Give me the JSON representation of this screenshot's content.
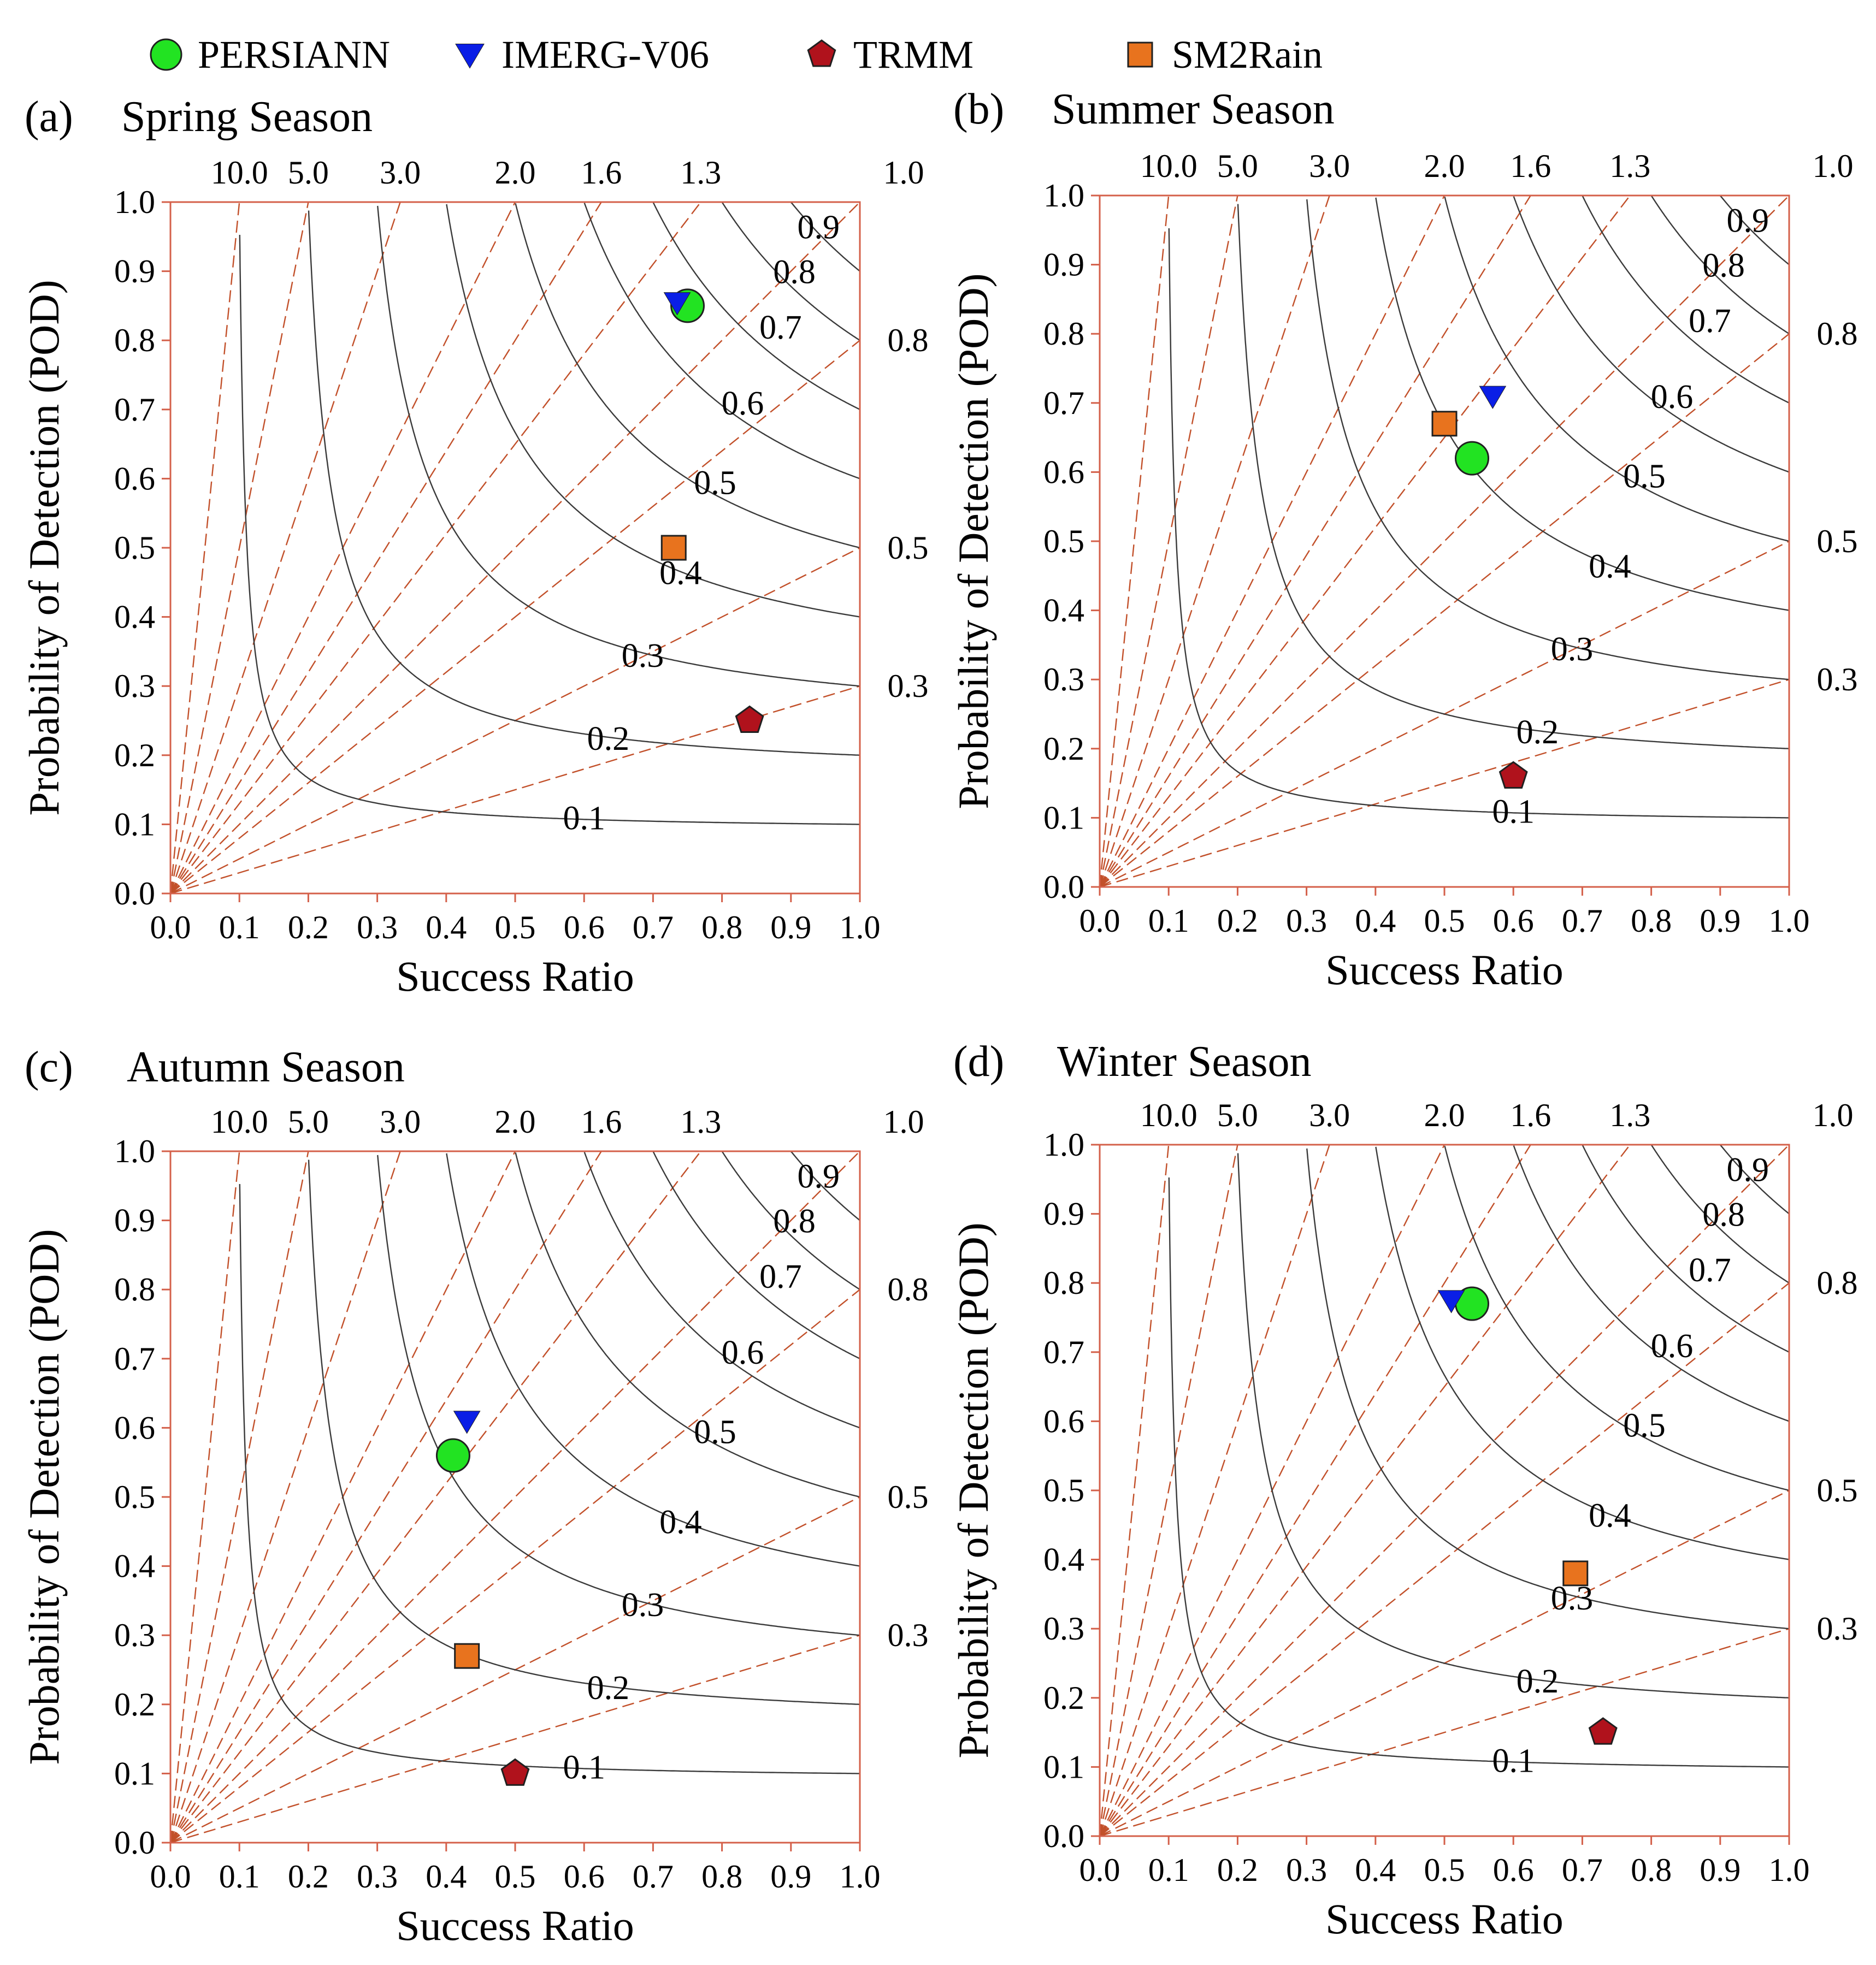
{
  "legend": [
    {
      "name": "PERSIANN",
      "marker": "circle",
      "color": "#22e322"
    },
    {
      "name": "IMERG-V06",
      "marker": "triangle-down",
      "color": "#0a1ee6"
    },
    {
      "name": "TRMM",
      "marker": "pentagon",
      "color": "#b0121c"
    },
    {
      "name": "SM2Rain",
      "marker": "square",
      "color": "#e8731e"
    }
  ],
  "colors": {
    "csi_line": "#3a3a3a",
    "bias_line": "#c2502a",
    "frame": "#d4604a"
  },
  "chart_data": [
    {
      "type": "scatter",
      "letter": "(a)",
      "title": "Spring Season",
      "xlabel": "Success Ratio",
      "ylabel": "Probability of Detection (POD)",
      "xlim": [
        0,
        1
      ],
      "ylim": [
        0,
        1
      ],
      "xticks": [
        "0.0",
        "0.1",
        "0.2",
        "0.3",
        "0.4",
        "0.5",
        "0.6",
        "0.7",
        "0.8",
        "0.9",
        "1.0"
      ],
      "yticks": [
        "0.0",
        "0.1",
        "0.2",
        "0.3",
        "0.4",
        "0.5",
        "0.6",
        "0.7",
        "0.8",
        "0.9",
        "1.0"
      ],
      "bias_values": [
        10,
        5,
        3,
        2,
        1.6,
        1.3,
        1,
        0.8,
        0.5,
        0.3
      ],
      "bias_top_labels": [
        "10.0",
        "5.0",
        "3.0",
        "2.0",
        "1.6",
        "1.3",
        "1.0"
      ],
      "bias_right_labels": [
        "0.8",
        "0.5",
        "0.3"
      ],
      "csi_values": [
        0.1,
        0.2,
        0.3,
        0.4,
        0.5,
        0.6,
        0.7,
        0.8,
        0.9
      ],
      "csi_labels": [
        "0.1",
        "0.2",
        "0.3",
        "0.4",
        "0.5",
        "0.6",
        "0.7",
        "0.8",
        "0.9"
      ],
      "series": [
        {
          "name": "PERSIANN",
          "x": 0.75,
          "y": 0.85
        },
        {
          "name": "IMERG-V06",
          "x": 0.735,
          "y": 0.855
        },
        {
          "name": "TRMM",
          "x": 0.84,
          "y": 0.25
        },
        {
          "name": "SM2Rain",
          "x": 0.73,
          "y": 0.5
        }
      ]
    },
    {
      "type": "scatter",
      "letter": "(b)",
      "title": "Summer Season",
      "xlabel": "Success Ratio",
      "ylabel": "Probability of Detection (POD)",
      "xlim": [
        0,
        1
      ],
      "ylim": [
        0,
        1
      ],
      "xticks": [
        "0.0",
        "0.1",
        "0.2",
        "0.3",
        "0.4",
        "0.5",
        "0.6",
        "0.7",
        "0.8",
        "0.9",
        "1.0"
      ],
      "yticks": [
        "0.0",
        "0.1",
        "0.2",
        "0.3",
        "0.4",
        "0.5",
        "0.6",
        "0.7",
        "0.8",
        "0.9",
        "1.0"
      ],
      "bias_values": [
        10,
        5,
        3,
        2,
        1.6,
        1.3,
        1,
        0.8,
        0.5,
        0.3
      ],
      "bias_top_labels": [
        "10.0",
        "5.0",
        "3.0",
        "2.0",
        "1.6",
        "1.3",
        "1.0"
      ],
      "bias_right_labels": [
        "0.8",
        "0.5",
        "0.3"
      ],
      "csi_values": [
        0.1,
        0.2,
        0.3,
        0.4,
        0.5,
        0.6,
        0.7,
        0.8,
        0.9
      ],
      "csi_labels": [
        "0.1",
        "0.2",
        "0.3",
        "0.4",
        "0.5",
        "0.6",
        "0.7",
        "0.8",
        "0.9"
      ],
      "series": [
        {
          "name": "PERSIANN",
          "x": 0.54,
          "y": 0.62
        },
        {
          "name": "IMERG-V06",
          "x": 0.57,
          "y": 0.71
        },
        {
          "name": "TRMM",
          "x": 0.6,
          "y": 0.16
        },
        {
          "name": "SM2Rain",
          "x": 0.5,
          "y": 0.67
        }
      ]
    },
    {
      "type": "scatter",
      "letter": "(c)",
      "title": "Autumn Season",
      "xlabel": "Success Ratio",
      "ylabel": "Probability of Detection (POD)",
      "xlim": [
        0,
        1
      ],
      "ylim": [
        0,
        1
      ],
      "xticks": [
        "0.0",
        "0.1",
        "0.2",
        "0.3",
        "0.4",
        "0.5",
        "0.6",
        "0.7",
        "0.8",
        "0.9",
        "1.0"
      ],
      "yticks": [
        "0.0",
        "0.1",
        "0.2",
        "0.3",
        "0.4",
        "0.5",
        "0.6",
        "0.7",
        "0.8",
        "0.9",
        "1.0"
      ],
      "bias_values": [
        10,
        5,
        3,
        2,
        1.6,
        1.3,
        1,
        0.8,
        0.5,
        0.3
      ],
      "bias_top_labels": [
        "10.0",
        "5.0",
        "3.0",
        "2.0",
        "1.6",
        "1.3",
        "1.0"
      ],
      "bias_right_labels": [
        "0.8",
        "0.5",
        "0.3"
      ],
      "csi_values": [
        0.1,
        0.2,
        0.3,
        0.4,
        0.5,
        0.6,
        0.7,
        0.8,
        0.9
      ],
      "csi_labels": [
        "0.1",
        "0.2",
        "0.3",
        "0.4",
        "0.5",
        "0.6",
        "0.7",
        "0.8",
        "0.9"
      ],
      "series": [
        {
          "name": "PERSIANN",
          "x": 0.41,
          "y": 0.56
        },
        {
          "name": "IMERG-V06",
          "x": 0.43,
          "y": 0.61
        },
        {
          "name": "TRMM",
          "x": 0.5,
          "y": 0.1
        },
        {
          "name": "SM2Rain",
          "x": 0.43,
          "y": 0.27
        }
      ]
    },
    {
      "type": "scatter",
      "letter": "(d)",
      "title": "Winter Season",
      "xlabel": "Success Ratio",
      "ylabel": "Probability of Detection (POD)",
      "xlim": [
        0,
        1
      ],
      "ylim": [
        0,
        1
      ],
      "xticks": [
        "0.0",
        "0.1",
        "0.2",
        "0.3",
        "0.4",
        "0.5",
        "0.6",
        "0.7",
        "0.8",
        "0.9",
        "1.0"
      ],
      "yticks": [
        "0.0",
        "0.1",
        "0.2",
        "0.3",
        "0.4",
        "0.5",
        "0.6",
        "0.7",
        "0.8",
        "0.9",
        "1.0"
      ],
      "bias_values": [
        10,
        5,
        3,
        2,
        1.6,
        1.3,
        1,
        0.8,
        0.5,
        0.3
      ],
      "bias_top_labels": [
        "10.0",
        "5.0",
        "3.0",
        "2.0",
        "1.6",
        "1.3",
        "1.0"
      ],
      "bias_right_labels": [
        "0.8",
        "0.5",
        "0.3"
      ],
      "csi_values": [
        0.1,
        0.2,
        0.3,
        0.4,
        0.5,
        0.6,
        0.7,
        0.8,
        0.9
      ],
      "csi_labels": [
        "0.1",
        "0.2",
        "0.3",
        "0.4",
        "0.5",
        "0.6",
        "0.7",
        "0.8",
        "0.9"
      ],
      "series": [
        {
          "name": "PERSIANN",
          "x": 0.54,
          "y": 0.77
        },
        {
          "name": "IMERG-V06",
          "x": 0.51,
          "y": 0.775
        },
        {
          "name": "TRMM",
          "x": 0.73,
          "y": 0.15
        },
        {
          "name": "SM2Rain",
          "x": 0.69,
          "y": 0.38
        }
      ]
    }
  ]
}
